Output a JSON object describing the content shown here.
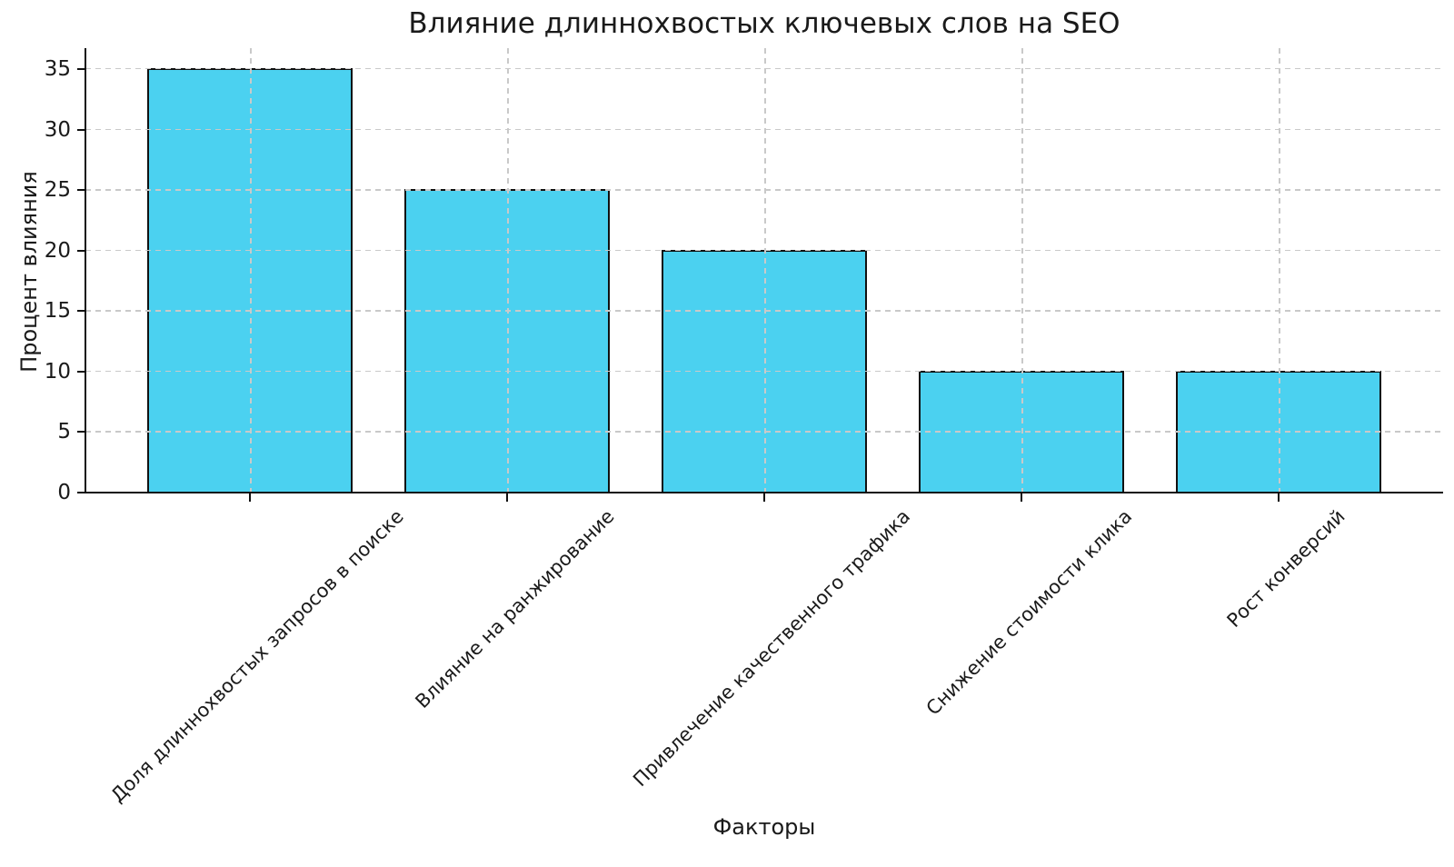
{
  "chart_data": {
    "type": "bar",
    "title": "Влияние длиннохвостых ключевых слов на SEO",
    "xlabel": "Факторы",
    "ylabel": "Процент влияния",
    "categories": [
      "Доля длиннохвостых запросов в поиске",
      "Влияние на ранжирование",
      "Привлечение качественного трафика",
      "Снижение стоимости клика",
      "Рост конверсий"
    ],
    "values": [
      35,
      25,
      20,
      10,
      10
    ],
    "y_ticks": [
      0,
      5,
      10,
      15,
      20,
      25,
      30,
      35
    ],
    "ylim": [
      0,
      36.65
    ],
    "xtick_rotation_deg": 45,
    "grid": true,
    "grid_style": "dashed",
    "legend": null,
    "colors": {
      "bar_fill": "#4BD1F0",
      "bar_edge": "#111111",
      "grid": "#c9c9c9",
      "axis": "#111111",
      "text": "#1a1a1a",
      "background": "#ffffff"
    }
  }
}
